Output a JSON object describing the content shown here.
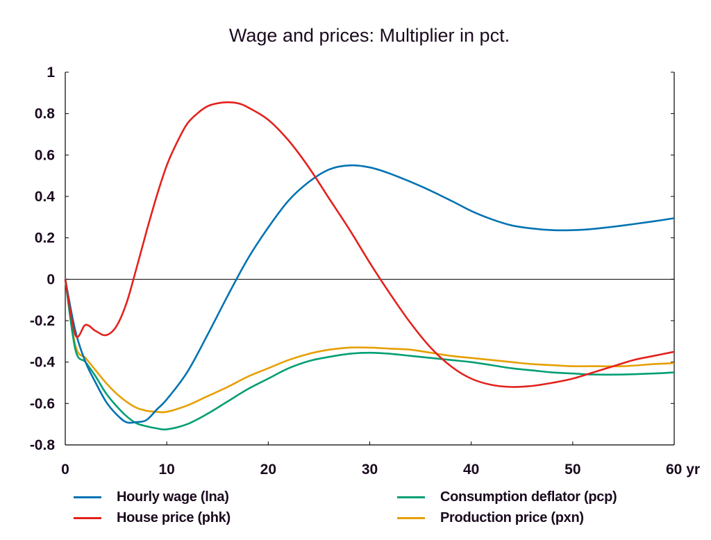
{
  "chart_data": {
    "type": "line",
    "title": "Wage and prices: Multiplier in pct.",
    "xlabel": "",
    "ylabel": "",
    "x_unit_label": "yr",
    "xlim": [
      0,
      60
    ],
    "ylim": [
      -0.8,
      1
    ],
    "xticks": [
      0,
      10,
      20,
      30,
      40,
      50,
      60
    ],
    "xtick_labels": [
      "0",
      "10",
      "20",
      "30",
      "40",
      "50",
      "60 yr"
    ],
    "yticks": [
      -0.8,
      -0.6,
      -0.4,
      -0.2,
      0,
      0.2,
      0.4,
      0.6,
      0.8,
      1
    ],
    "ytick_labels": [
      "-0.8",
      "-0.6",
      "-0.4",
      "-0.2",
      "0",
      "0.2",
      "0.4",
      "0.6",
      "0.8",
      "1"
    ],
    "grid": false,
    "zero_line": true,
    "legend_position": "bottom",
    "series": [
      {
        "name": "Hourly wage (lna)",
        "color": "#0072b2",
        "x": [
          0,
          1,
          2,
          3,
          4,
          5,
          6,
          7,
          8,
          9,
          10,
          12,
          14,
          16,
          18,
          20,
          22,
          24,
          26,
          28,
          30,
          32,
          35,
          38,
          40,
          42,
          44,
          46,
          48,
          50,
          52,
          55,
          58,
          60
        ],
        "y": [
          0,
          -0.25,
          -0.4,
          -0.5,
          -0.59,
          -0.65,
          -0.69,
          -0.69,
          -0.68,
          -0.63,
          -0.58,
          -0.45,
          -0.27,
          -0.08,
          0.1,
          0.25,
          0.38,
          0.47,
          0.53,
          0.55,
          0.54,
          0.51,
          0.45,
          0.38,
          0.33,
          0.29,
          0.26,
          0.245,
          0.237,
          0.237,
          0.243,
          0.26,
          0.28,
          0.295
        ]
      },
      {
        "name": "House price (phk)",
        "color": "#e3211c",
        "x": [
          0,
          1,
          2,
          3,
          4,
          5,
          6,
          7,
          8,
          9,
          10,
          11,
          12,
          13,
          14,
          15,
          16,
          17,
          18,
          20,
          22,
          24,
          26,
          28,
          30,
          32,
          34,
          36,
          38,
          40,
          42,
          44,
          46,
          48,
          50,
          52,
          54,
          56,
          58,
          60
        ],
        "y": [
          0,
          -0.27,
          -0.22,
          -0.25,
          -0.27,
          -0.23,
          -0.12,
          0.05,
          0.23,
          0.4,
          0.55,
          0.66,
          0.75,
          0.8,
          0.835,
          0.85,
          0.855,
          0.85,
          0.83,
          0.77,
          0.67,
          0.54,
          0.39,
          0.24,
          0.08,
          -0.07,
          -0.21,
          -0.33,
          -0.42,
          -0.48,
          -0.51,
          -0.52,
          -0.515,
          -0.5,
          -0.48,
          -0.45,
          -0.42,
          -0.39,
          -0.37,
          -0.35
        ]
      },
      {
        "name": "Consumption deflator (pcp)",
        "color": "#009e73",
        "x": [
          0,
          1,
          2,
          3,
          4,
          5,
          6,
          7,
          8,
          9,
          10,
          12,
          14,
          16,
          18,
          20,
          22,
          24,
          26,
          28,
          30,
          32,
          34,
          36,
          38,
          40,
          42,
          44,
          46,
          48,
          50,
          52,
          55,
          58,
          60
        ],
        "y": [
          0,
          -0.34,
          -0.4,
          -0.47,
          -0.55,
          -0.61,
          -0.66,
          -0.695,
          -0.71,
          -0.72,
          -0.725,
          -0.7,
          -0.65,
          -0.59,
          -0.53,
          -0.48,
          -0.43,
          -0.395,
          -0.375,
          -0.36,
          -0.355,
          -0.36,
          -0.37,
          -0.38,
          -0.39,
          -0.4,
          -0.415,
          -0.43,
          -0.44,
          -0.45,
          -0.455,
          -0.46,
          -0.46,
          -0.455,
          -0.45
        ]
      },
      {
        "name": "Production price (pxn)",
        "color": "#e69f00",
        "x": [
          0,
          1,
          2,
          3,
          4,
          5,
          6,
          7,
          8,
          9,
          10,
          12,
          14,
          16,
          18,
          20,
          22,
          24,
          26,
          28,
          30,
          32,
          34,
          36,
          38,
          40,
          42,
          44,
          46,
          48,
          50,
          52,
          55,
          58,
          60
        ],
        "y": [
          0,
          -0.32,
          -0.38,
          -0.44,
          -0.5,
          -0.55,
          -0.59,
          -0.62,
          -0.635,
          -0.64,
          -0.64,
          -0.61,
          -0.565,
          -0.52,
          -0.47,
          -0.43,
          -0.39,
          -0.36,
          -0.34,
          -0.33,
          -0.33,
          -0.335,
          -0.34,
          -0.355,
          -0.37,
          -0.38,
          -0.39,
          -0.4,
          -0.41,
          -0.415,
          -0.42,
          -0.42,
          -0.42,
          -0.41,
          -0.405
        ]
      }
    ]
  },
  "legend": {
    "items": [
      {
        "label": "Hourly wage (lna)",
        "color": "#0072b2"
      },
      {
        "label": "House price (phk)",
        "color": "#e3211c"
      },
      {
        "label": "Consumption deflator (pcp)",
        "color": "#009e73"
      },
      {
        "label": "Production price (pxn)",
        "color": "#e69f00"
      }
    ]
  }
}
